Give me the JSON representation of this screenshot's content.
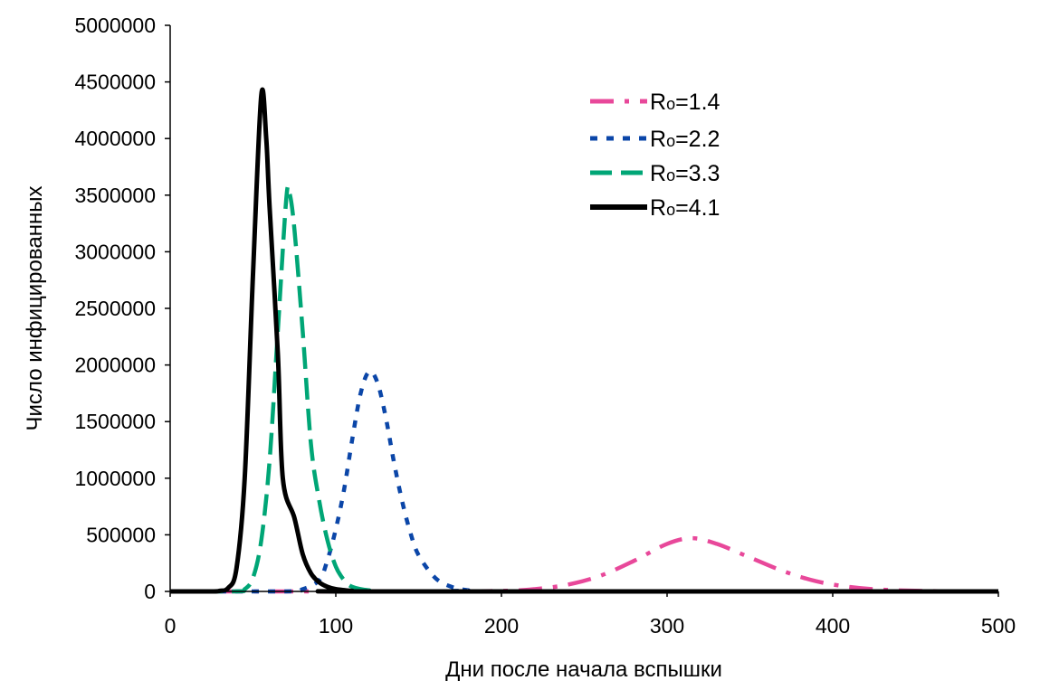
{
  "chart_data": {
    "type": "line",
    "title": "",
    "xlabel": "Дни после начала вспышки",
    "ylabel": "Число инфицированных",
    "xlim": [
      0,
      500
    ],
    "ylim": [
      0,
      5000000
    ],
    "xticks": [
      0,
      100,
      200,
      300,
      400,
      500
    ],
    "yticks": [
      0,
      500000,
      1000000,
      1500000,
      2000000,
      2500000,
      3000000,
      3500000,
      4000000,
      4500000,
      5000000
    ],
    "grid": false,
    "legend_position": "top-right",
    "series": [
      {
        "name": "Rₒ=1.4",
        "label_main": "R",
        "label_sub": "o",
        "label_rest": "=1.4",
        "color": "#E8489A",
        "style": "dash-dot",
        "x": [
          0,
          150,
          200,
          220,
          240,
          260,
          280,
          300,
          315,
          330,
          350,
          370,
          390,
          410,
          430,
          460,
          500
        ],
        "y": [
          0,
          0,
          5000,
          20000,
          60000,
          140000,
          270000,
          420000,
          470000,
          420000,
          300000,
          180000,
          90000,
          40000,
          15000,
          3000,
          0
        ]
      },
      {
        "name": "Rₒ=2.2",
        "label_main": "R",
        "label_sub": "o",
        "label_rest": "=2.2",
        "color": "#0B46A8",
        "style": "short-dash",
        "x": [
          0,
          70,
          80,
          90,
          95,
          100,
          105,
          110,
          115,
          120,
          125,
          130,
          135,
          140,
          145,
          150,
          160,
          170,
          180,
          190,
          500
        ],
        "y": [
          0,
          0,
          20000,
          100000,
          280000,
          550000,
          900000,
          1350000,
          1750000,
          1940000,
          1850000,
          1550000,
          1150000,
          800000,
          520000,
          320000,
          120000,
          40000,
          10000,
          0,
          0
        ]
      },
      {
        "name": "Rₒ=3.3",
        "label_main": "R",
        "label_sub": "o",
        "label_rest": "=3.3",
        "color": "#00A676",
        "style": "long-dash",
        "x": [
          0,
          40,
          45,
          50,
          55,
          60,
          65,
          70,
          72,
          75,
          80,
          85,
          90,
          95,
          100,
          105,
          110,
          120,
          140,
          500
        ],
        "y": [
          0,
          0,
          20000,
          120000,
          450000,
          1150000,
          2300000,
          3450000,
          3520000,
          3200000,
          2300000,
          1300000,
          800000,
          450000,
          220000,
          100000,
          40000,
          10000,
          0,
          0
        ]
      },
      {
        "name": "Rₒ=4.1",
        "label_main": "R",
        "label_sub": "o",
        "label_rest": "=4.1",
        "color": "#000000",
        "style": "solid",
        "x": [
          0,
          25,
          30,
          35,
          40,
          45,
          50,
          55,
          58,
          60,
          65,
          68,
          75,
          80,
          85,
          90,
          95,
          100,
          110,
          120,
          500
        ],
        "y": [
          0,
          0,
          5000,
          30000,
          200000,
          1000000,
          2800000,
          4380000,
          4000000,
          3400000,
          2100000,
          1000000,
          650000,
          330000,
          160000,
          80000,
          40000,
          20000,
          5000,
          0,
          0
        ]
      }
    ]
  }
}
